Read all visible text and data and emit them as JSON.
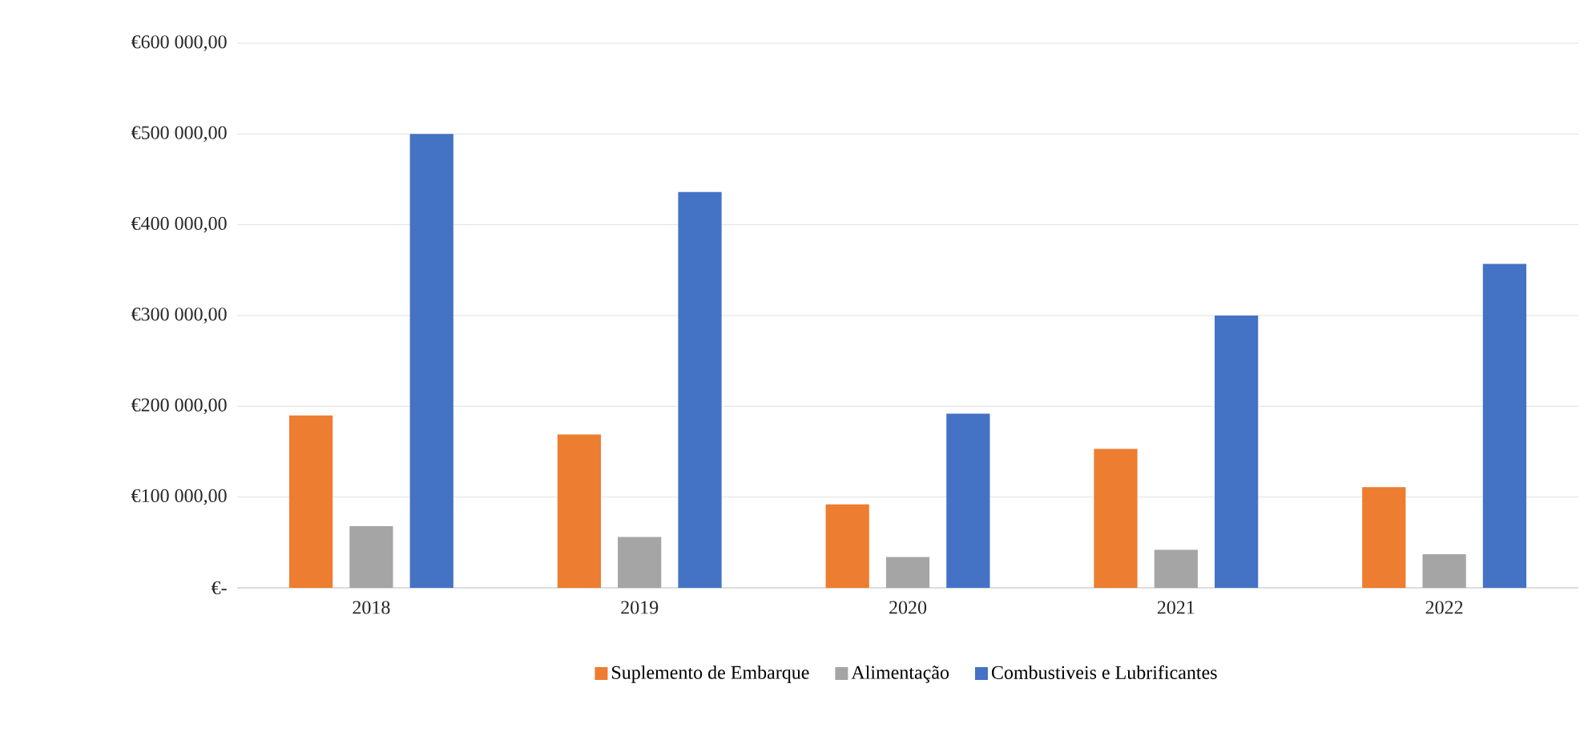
{
  "chart_data": {
    "type": "bar",
    "categories": [
      "2018",
      "2019",
      "2020",
      "2021",
      "2022"
    ],
    "series": [
      {
        "name": "Suplemento de Embarque",
        "color": "#ed7d31",
        "values": [
          190000,
          169000,
          92000,
          153000,
          111000
        ]
      },
      {
        "name": "Alimentação",
        "color": "#a5a5a5",
        "values": [
          68000,
          56000,
          34000,
          42000,
          37000
        ]
      },
      {
        "name": "Combustiveis e Lubrificantes",
        "color": "#4472c4",
        "values": [
          500000,
          436000,
          192000,
          300000,
          357000
        ]
      }
    ],
    "ylim": [
      0,
      600000
    ],
    "yticks": [
      {
        "value": 0,
        "label": "€-"
      },
      {
        "value": 100000,
        "label": "€100 000,00"
      },
      {
        "value": 200000,
        "label": "€200 000,00"
      },
      {
        "value": 300000,
        "label": "€300 000,00"
      },
      {
        "value": 400000,
        "label": "€400 000,00"
      },
      {
        "value": 500000,
        "label": "€500 000,00"
      },
      {
        "value": 600000,
        "label": "€600 000,00"
      }
    ],
    "grid": "y",
    "legend": "bottom"
  }
}
